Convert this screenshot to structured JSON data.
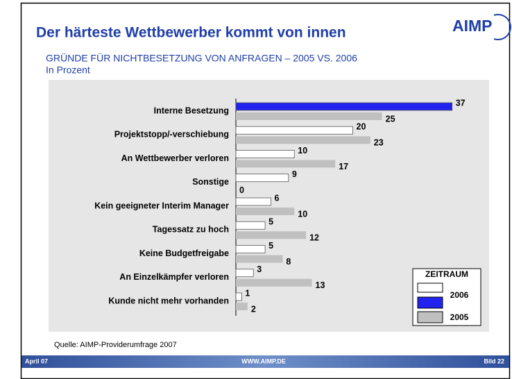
{
  "logo": "AIMP",
  "chart_data": {
    "type": "hbar",
    "title": "Der härteste Wettbewerber kommt von innen",
    "subtitle": "GRÜNDE FÜR NICHTBESETZUNG VON ANFRAGEN – 2005 VS. 2006",
    "unit_label": "In Prozent",
    "categories": [
      "Interne Besetzung",
      "Projektstopp/-verschiebung",
      "An Wettbewerber verloren",
      "Sonstige",
      "Kein geeigneter Interim Manager",
      "Tagessatz zu hoch",
      "Keine Budgetfreigabe",
      "An Einzelkämpfer verloren",
      "Kunde nicht mehr vorhanden"
    ],
    "series": [
      {
        "name": "2006",
        "color": "#ffffff",
        "highlight_color": "#2323f0",
        "highlight": [
          0
        ],
        "values": [
          37,
          20,
          10,
          9,
          6,
          5,
          5,
          3,
          1
        ]
      },
      {
        "name": "2005",
        "color": "#c0c0c0",
        "values": [
          25,
          23,
          17,
          0,
          10,
          12,
          8,
          13,
          2
        ]
      }
    ],
    "xlim": [
      0,
      40
    ],
    "legend_title": "ZEITRAUM",
    "legend": "bottom-right",
    "source": "Quelle: AIMP-Providerumfrage 2007"
  },
  "footer": {
    "left": "April 07",
    "center": "WWW.AIMP.DE",
    "right": "Bild 22"
  }
}
